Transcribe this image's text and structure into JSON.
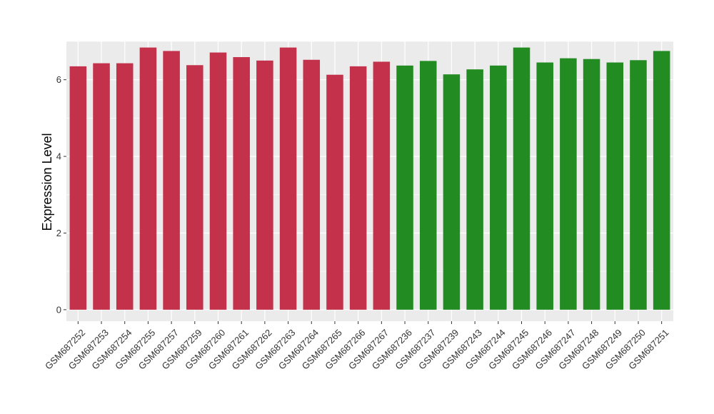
{
  "chart_data": {
    "type": "bar",
    "title": "",
    "xlabel": "",
    "ylabel": "Expression Level",
    "ylim": [
      -0.3,
      7.0
    ],
    "yticks": [
      0,
      2,
      4,
      6
    ],
    "grid": true,
    "background": "#EBEBEB",
    "gridline_color": "#FFFFFF",
    "categories": [
      "GSM687252",
      "GSM687253",
      "GSM687254",
      "GSM687255",
      "GSM687257",
      "GSM687259",
      "GSM687260",
      "GSM687261",
      "GSM687262",
      "GSM687263",
      "GSM687264",
      "GSM687265",
      "GSM687266",
      "GSM687267",
      "GSM687236",
      "GSM687237",
      "GSM687239",
      "GSM687243",
      "GSM687244",
      "GSM687245",
      "GSM687246",
      "GSM687247",
      "GSM687248",
      "GSM687249",
      "GSM687250",
      "GSM687251"
    ],
    "values": [
      6.35,
      6.43,
      6.43,
      6.84,
      6.75,
      6.38,
      6.71,
      6.59,
      6.5,
      6.84,
      6.52,
      6.13,
      6.35,
      6.47,
      6.37,
      6.49,
      6.14,
      6.27,
      6.37,
      6.84,
      6.45,
      6.56,
      6.54,
      6.45,
      6.51,
      6.75
    ],
    "bar_colors": [
      "#C3314A",
      "#C3314A",
      "#C3314A",
      "#C3314A",
      "#C3314A",
      "#C3314A",
      "#C3314A",
      "#C3314A",
      "#C3314A",
      "#C3314A",
      "#C3314A",
      "#C3314A",
      "#C3314A",
      "#C3314A",
      "#228B22",
      "#228B22",
      "#228B22",
      "#228B22",
      "#228B22",
      "#228B22",
      "#228B22",
      "#228B22",
      "#228B22",
      "#228B22",
      "#228B22",
      "#228B22"
    ]
  }
}
